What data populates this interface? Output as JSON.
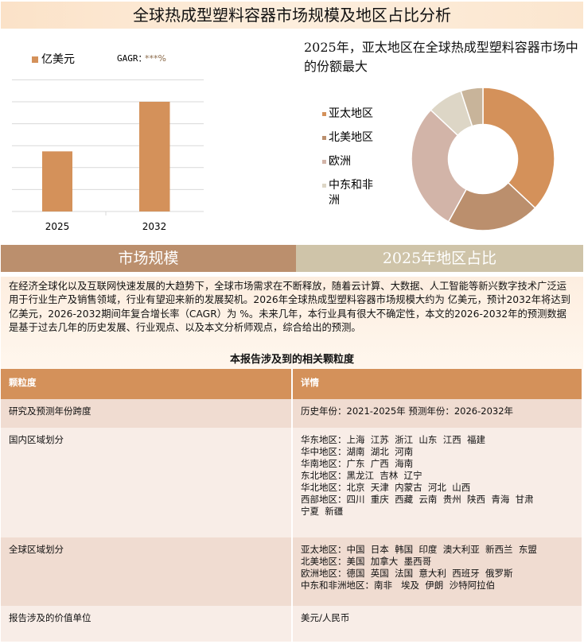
{
  "title": "全球热成型塑料容器市场规模及地区占比分析",
  "chart_data": [
    {
      "type": "bar",
      "categories": [
        "2025",
        "2032"
      ],
      "values": [
        2.74,
        5.0
      ],
      "legend": "亿美元",
      "annotation": "GAGR：",
      "annotation_value": "***%",
      "grid": true,
      "color": "#d4915a"
    },
    {
      "type": "pie",
      "donut": true,
      "title": "2025年，亚太地区在全球热成型塑料容器市场中的份额最大",
      "labels": [
        "亚太地区",
        "北美地区",
        "欧洲",
        "中东和非洲",
        ""
      ],
      "values": [
        37,
        21,
        29,
        8,
        5
      ],
      "colors": [
        "#d4915a",
        "#bb8f6d",
        "#d2b4a8",
        "#ddd6c6",
        "#c8b49a"
      ],
      "legend_position": "left"
    }
  ],
  "tabs": [
    "市场规模",
    "2025年地区占比"
  ],
  "description": "在经济全球化以及互联网快速发展的大趋势下，全球市场需求在不断释放，随着云计算、大数据、人工智能等新兴数字技术广泛运用于行业生产及销售领域，行业有望迎来新的发展契机。2026年全球热成型塑料容器市场规模大约为 亿美元，预计2032年将达到 亿美元，2026-2032期间年复合增长率（CAGR）为 %。未来几年，本行业具有很大不确定性，本文的2026-2032年的预测数据是基于过去几年的历史发展、行业观点、以及本文分析师观点，综合给出的预测。",
  "table": {
    "title": "本报告涉及到的相关颗粒度",
    "headers": [
      "颗粒度",
      "详情"
    ],
    "rows": [
      {
        "k": "研究及预测年份跨度",
        "v": [
          "历史年份：2021-2025年 预测年份：2026-2032年"
        ]
      },
      {
        "k": "国内区域划分",
        "v": [
          "华东地区：上海  江苏  浙江  山东  江西  福建",
          "华中地区：湖南  湖北  河南",
          "华南地区：广东  广西  海南",
          "东北地区：黑龙江  吉林  辽宁",
          "华北地区：北京  天津  内蒙古  河北  山西",
          "西部地区：四川  重庆  西藏  云南  贵州  陕西  青海  甘肃",
          "宁夏  新疆"
        ]
      },
      {
        "k": "全球区域划分",
        "v": [
          "亚太地区：中国  日本  韩国  印度  澳大利亚  新西兰  东盟",
          "北美地区：美国  加拿大  墨西哥",
          "欧洲地区：德国  英国  法国  意大利  西班牙  俄罗斯",
          "中东和非洲地区：南非   埃及  伊朗  沙特阿拉伯"
        ]
      },
      {
        "k": "报告涉及的价值单位",
        "v": [
          "美元/人民币"
        ]
      }
    ]
  }
}
